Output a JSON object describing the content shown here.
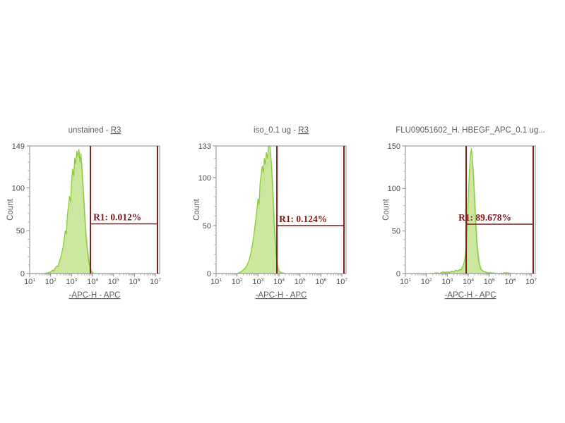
{
  "window": {
    "background": "#ffffff"
  },
  "colors": {
    "background": "#ffffff",
    "plot_border": "#8a8a8a",
    "tick": "#8a8a8a",
    "minor_tick": "#a8a8a8",
    "tick_label": "#4c4c4c",
    "title_text": "#5a5a5a",
    "axis_label_text": "#5a5a5a",
    "gate_line": "#7a1f1f",
    "gate_label_text": "#7e1a1a",
    "hist_fill": "#c7e694",
    "hist_stroke": "#8cc63f",
    "hist_stroke_echo": "#b2df7e"
  },
  "chart_data": [
    {
      "type": "area",
      "title_prefix": "unstained - ",
      "title_link": "R3",
      "ylabel": "Count",
      "xlabel": "-APC-H -  APC",
      "ymax": 149,
      "y_major_ticks": [
        0,
        50,
        100,
        149
      ],
      "y_minor_step": 10,
      "x_tick_exponents": [
        1,
        2,
        3,
        4,
        5,
        6,
        7
      ],
      "xlim_decades": [
        1,
        7.2
      ],
      "grid": false,
      "gate": {
        "name": "R1",
        "label": "R1: 0.012%",
        "x1_decade": 3.9,
        "x2_decade": 7.1,
        "y_count": 58,
        "label_dx": 4
      },
      "curve": [
        [
          1.0,
          0
        ],
        [
          1.7,
          0
        ],
        [
          1.9,
          1
        ],
        [
          2.0,
          2
        ],
        [
          2.1,
          4
        ],
        [
          2.15,
          3
        ],
        [
          2.2,
          6
        ],
        [
          2.3,
          9
        ],
        [
          2.35,
          8
        ],
        [
          2.4,
          13
        ],
        [
          2.5,
          20
        ],
        [
          2.6,
          32
        ],
        [
          2.7,
          50
        ],
        [
          2.75,
          46
        ],
        [
          2.8,
          68
        ],
        [
          2.9,
          90
        ],
        [
          2.95,
          84
        ],
        [
          3.0,
          108
        ],
        [
          3.05,
          122
        ],
        [
          3.1,
          114
        ],
        [
          3.15,
          135
        ],
        [
          3.2,
          128
        ],
        [
          3.25,
          143
        ],
        [
          3.3,
          136
        ],
        [
          3.35,
          145
        ],
        [
          3.4,
          130
        ],
        [
          3.45,
          140
        ],
        [
          3.5,
          118
        ],
        [
          3.55,
          98
        ],
        [
          3.6,
          76
        ],
        [
          3.65,
          56
        ],
        [
          3.7,
          40
        ],
        [
          3.75,
          27
        ],
        [
          3.8,
          17
        ],
        [
          3.85,
          10
        ],
        [
          3.9,
          5
        ],
        [
          3.95,
          2
        ],
        [
          4.05,
          0
        ],
        [
          7.2,
          0
        ]
      ]
    },
    {
      "type": "area",
      "title_prefix": "iso_0.1 ug - ",
      "title_link": "R3",
      "ylabel": "Count",
      "xlabel": "-APC-H -  APC",
      "ymax": 133,
      "y_major_ticks": [
        0,
        50,
        100,
        133
      ],
      "y_minor_step": 10,
      "x_tick_exponents": [
        1,
        2,
        3,
        4,
        5,
        6,
        7
      ],
      "xlim_decades": [
        1,
        7.2
      ],
      "grid": false,
      "gate": {
        "name": "R1",
        "label": "R1: 0.124%",
        "x1_decade": 3.9,
        "x2_decade": 7.1,
        "y_count": 50,
        "label_dx": 3
      },
      "curve": [
        [
          1.0,
          0
        ],
        [
          2.0,
          0
        ],
        [
          2.2,
          2
        ],
        [
          2.3,
          4
        ],
        [
          2.4,
          6
        ],
        [
          2.5,
          10
        ],
        [
          2.6,
          16
        ],
        [
          2.7,
          26
        ],
        [
          2.8,
          40
        ],
        [
          2.9,
          58
        ],
        [
          3.0,
          78
        ],
        [
          3.05,
          72
        ],
        [
          3.1,
          95
        ],
        [
          3.2,
          112
        ],
        [
          3.25,
          105
        ],
        [
          3.3,
          120
        ],
        [
          3.35,
          114
        ],
        [
          3.4,
          126
        ],
        [
          3.45,
          120
        ],
        [
          3.5,
          133
        ],
        [
          3.55,
          133
        ],
        [
          3.6,
          126
        ],
        [
          3.65,
          110
        ],
        [
          3.7,
          86
        ],
        [
          3.75,
          60
        ],
        [
          3.8,
          38
        ],
        [
          3.85,
          22
        ],
        [
          3.9,
          11
        ],
        [
          3.95,
          5
        ],
        [
          4.0,
          2
        ],
        [
          4.1,
          1
        ],
        [
          4.3,
          0
        ],
        [
          7.2,
          0
        ]
      ]
    },
    {
      "type": "area",
      "title_prefix": "FLU09051602_H. HBEGF_APC_0.1 ug...",
      "title_link": "",
      "ylabel": "Count",
      "xlabel": "-APC-H -  APC",
      "ymax": 150,
      "y_major_ticks": [
        0,
        50,
        100,
        150
      ],
      "y_minor_step": 10,
      "x_tick_exponents": [
        1,
        2,
        3,
        4,
        5,
        6,
        7
      ],
      "xlim_decades": [
        1,
        7.2
      ],
      "grid": false,
      "gate": {
        "name": "R1",
        "label": "R1: 89.678%",
        "x1_decade": 3.9,
        "x2_decade": 7.1,
        "y_count": 58,
        "label_dx": -11
      },
      "curve": [
        [
          1.0,
          0
        ],
        [
          2.3,
          0
        ],
        [
          2.5,
          1
        ],
        [
          2.6,
          0
        ],
        [
          2.8,
          2
        ],
        [
          2.9,
          1
        ],
        [
          3.0,
          2
        ],
        [
          3.1,
          1
        ],
        [
          3.2,
          3
        ],
        [
          3.3,
          2
        ],
        [
          3.4,
          4
        ],
        [
          3.5,
          3
        ],
        [
          3.6,
          5
        ],
        [
          3.65,
          4
        ],
        [
          3.7,
          7
        ],
        [
          3.75,
          9
        ],
        [
          3.8,
          13
        ],
        [
          3.85,
          20
        ],
        [
          3.9,
          32
        ],
        [
          3.95,
          55
        ],
        [
          4.0,
          88
        ],
        [
          4.05,
          118
        ],
        [
          4.1,
          140
        ],
        [
          4.15,
          147
        ],
        [
          4.2,
          133
        ],
        [
          4.25,
          112
        ],
        [
          4.3,
          86
        ],
        [
          4.35,
          60
        ],
        [
          4.4,
          38
        ],
        [
          4.45,
          24
        ],
        [
          4.5,
          14
        ],
        [
          4.55,
          9
        ],
        [
          4.6,
          5
        ],
        [
          4.7,
          3
        ],
        [
          4.8,
          2
        ],
        [
          4.9,
          1
        ],
        [
          5.1,
          1
        ],
        [
          5.4,
          0
        ],
        [
          5.8,
          1
        ],
        [
          6.1,
          0
        ],
        [
          7.2,
          0
        ]
      ]
    }
  ]
}
